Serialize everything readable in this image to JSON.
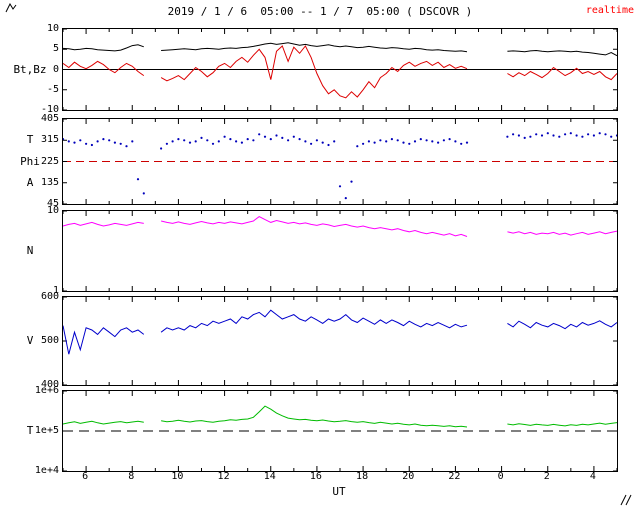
{
  "header": {
    "title": "2019 / 1 / 6  05:00 -- 1 / 7  05:00 ( DSCOVR )",
    "realtime_label": "realtime",
    "realtime_color": "#ff0000"
  },
  "icons": {
    "top_left_mark": "diagonal-hatch",
    "bottom_right_mark": "diagonal-hatch"
  },
  "x_axis": {
    "label": "UT",
    "t_start": 5,
    "t_end": 29,
    "t_step": 0.25,
    "tick_values": [
      6,
      8,
      10,
      12,
      14,
      16,
      18,
      20,
      22,
      24,
      26,
      28
    ],
    "tick_labels": [
      "6",
      "8",
      "10",
      "12",
      "14",
      "16",
      "18",
      "20",
      "22",
      "0",
      "2",
      "4"
    ]
  },
  "chart_data": [
    {
      "name": "bt_bz",
      "type": "line",
      "yscale": "linear",
      "ylim": [
        -10,
        10
      ],
      "yticks": [
        10,
        5,
        0,
        -5,
        -10
      ],
      "ytick_labels": [
        "10",
        "5",
        "0",
        "-5",
        "-10"
      ],
      "left_labels": [
        "Bt,Bz"
      ],
      "hlines": [
        {
          "value": 0,
          "color": "#000000",
          "dash": ""
        }
      ],
      "series": [
        {
          "name": "Bt",
          "color": "#000000",
          "values": [
            5.2,
            5.1,
            4.9,
            5.0,
            5.2,
            5.1,
            4.9,
            4.8,
            4.7,
            4.6,
            4.8,
            5.3,
            5.9,
            6.1,
            5.6,
            null,
            null,
            4.7,
            4.8,
            4.9,
            5.0,
            5.1,
            5.0,
            4.9,
            5.1,
            5.2,
            5.1,
            5.0,
            5.2,
            5.3,
            5.2,
            5.4,
            5.5,
            5.7,
            6.0,
            6.3,
            6.5,
            6.2,
            6.4,
            6.6,
            6.3,
            6.0,
            6.2,
            5.9,
            5.7,
            5.9,
            6.1,
            5.8,
            5.6,
            5.8,
            5.6,
            5.4,
            5.5,
            5.7,
            5.5,
            5.3,
            5.2,
            5.4,
            5.3,
            5.1,
            5.0,
            5.2,
            5.1,
            4.9,
            4.8,
            4.9,
            4.7,
            4.6,
            4.5,
            4.6,
            4.4,
            null,
            null,
            null,
            null,
            null,
            null,
            4.5,
            4.6,
            4.5,
            4.4,
            4.6,
            4.7,
            4.5,
            4.4,
            4.5,
            4.6,
            4.5,
            4.4,
            4.5,
            4.3,
            4.2,
            4.0,
            3.8,
            3.6,
            4.2,
            3.4
          ]
        },
        {
          "name": "Bz",
          "color": "#dd0000",
          "values": [
            1.5,
            0.5,
            1.8,
            0.8,
            0.2,
            1.0,
            2.0,
            1.2,
            0.0,
            -0.8,
            0.5,
            1.5,
            0.8,
            -0.5,
            -1.5,
            null,
            null,
            -2.0,
            -2.8,
            -2.2,
            -1.5,
            -2.5,
            -1.0,
            0.5,
            -0.5,
            -1.8,
            -0.8,
            0.8,
            1.5,
            0.5,
            2.0,
            3.0,
            1.8,
            3.5,
            5.0,
            3.0,
            -2.5,
            4.5,
            5.8,
            2.0,
            5.5,
            4.0,
            5.8,
            3.0,
            -1.0,
            -4.0,
            -6.0,
            -5.0,
            -6.5,
            -7.0,
            -5.5,
            -6.8,
            -5.0,
            -3.0,
            -4.5,
            -2.0,
            -1.0,
            0.5,
            -0.5,
            1.0,
            1.8,
            0.8,
            1.5,
            2.0,
            1.0,
            1.8,
            0.5,
            1.2,
            0.3,
            0.8,
            0.2,
            null,
            null,
            null,
            null,
            null,
            null,
            -1.0,
            -1.8,
            -0.8,
            -1.5,
            -0.5,
            -1.2,
            -2.0,
            -1.0,
            0.5,
            -0.5,
            -1.5,
            -0.8,
            0.3,
            -1.0,
            -0.5,
            -1.2,
            -0.5,
            -1.8,
            -2.5,
            -1.0
          ]
        }
      ]
    },
    {
      "name": "phi",
      "type": "scatter",
      "yscale": "linear",
      "ylim": [
        45,
        405
      ],
      "yticks": [
        405,
        315,
        225,
        135,
        45
      ],
      "ytick_labels": [
        "405",
        "315",
        "225",
        "135",
        "45"
      ],
      "left_labels": [
        "T",
        "Phi",
        "A"
      ],
      "hlines": [
        {
          "value": 225,
          "color": "#cc0000",
          "dash": "8 5"
        }
      ],
      "series": [
        {
          "name": "Phi",
          "color": "#0000bb",
          "values": [
            320,
            310,
            305,
            315,
            300,
            295,
            310,
            320,
            315,
            305,
            300,
            290,
            310,
            150,
            90,
            null,
            null,
            280,
            300,
            310,
            320,
            315,
            305,
            310,
            325,
            315,
            300,
            310,
            330,
            320,
            310,
            305,
            320,
            315,
            340,
            330,
            320,
            335,
            325,
            315,
            330,
            320,
            310,
            300,
            315,
            305,
            295,
            310,
            120,
            70,
            140,
            290,
            300,
            310,
            305,
            315,
            310,
            320,
            315,
            305,
            300,
            310,
            320,
            315,
            310,
            305,
            315,
            320,
            310,
            300,
            305,
            null,
            null,
            null,
            null,
            null,
            null,
            330,
            340,
            335,
            325,
            330,
            340,
            335,
            345,
            335,
            330,
            340,
            345,
            335,
            330,
            340,
            335,
            345,
            340,
            330,
            335
          ]
        }
      ]
    },
    {
      "name": "n",
      "type": "line",
      "yscale": "log",
      "ylim": [
        1,
        10
      ],
      "yticks": [
        10,
        1
      ],
      "ytick_labels": [
        "10",
        "1"
      ],
      "left_labels": [
        "N"
      ],
      "hlines": [],
      "series": [
        {
          "name": "N",
          "color": "#ff00ff",
          "values": [
            6.5,
            6.8,
            7.0,
            6.6,
            6.9,
            7.2,
            6.8,
            6.5,
            6.7,
            7.0,
            6.8,
            6.6,
            6.9,
            7.2,
            7.0,
            null,
            null,
            7.5,
            7.2,
            7.0,
            7.3,
            7.0,
            6.8,
            7.1,
            7.4,
            7.1,
            6.9,
            7.2,
            7.0,
            7.3,
            7.1,
            6.9,
            7.2,
            7.5,
            8.5,
            7.8,
            7.2,
            7.6,
            7.3,
            7.0,
            7.2,
            6.9,
            7.1,
            6.8,
            6.6,
            6.9,
            6.7,
            6.4,
            6.6,
            6.8,
            6.5,
            6.3,
            6.5,
            6.2,
            6.0,
            6.2,
            6.0,
            5.8,
            6.0,
            5.7,
            5.5,
            5.7,
            5.4,
            5.2,
            5.4,
            5.2,
            5.0,
            5.2,
            4.9,
            5.1,
            4.8,
            null,
            null,
            null,
            null,
            null,
            null,
            5.5,
            5.3,
            5.5,
            5.2,
            5.4,
            5.1,
            5.3,
            5.2,
            5.4,
            5.1,
            5.3,
            5.0,
            5.2,
            5.4,
            5.1,
            5.3,
            5.5,
            5.2,
            5.4,
            5.6
          ]
        }
      ]
    },
    {
      "name": "v",
      "type": "line",
      "yscale": "linear",
      "ylim": [
        400,
        600
      ],
      "yticks": [
        600,
        500,
        400
      ],
      "ytick_labels": [
        "600",
        "500",
        "400"
      ],
      "left_labels": [
        "V"
      ],
      "hlines": [],
      "series": [
        {
          "name": "V",
          "color": "#0000cc",
          "values": [
            535,
            470,
            520,
            480,
            530,
            525,
            515,
            530,
            520,
            510,
            525,
            530,
            520,
            525,
            515,
            null,
            null,
            520,
            530,
            525,
            530,
            525,
            535,
            530,
            540,
            535,
            545,
            540,
            545,
            550,
            540,
            555,
            550,
            560,
            565,
            555,
            570,
            560,
            550,
            555,
            560,
            550,
            545,
            555,
            548,
            540,
            550,
            545,
            550,
            560,
            548,
            542,
            552,
            545,
            538,
            548,
            540,
            548,
            542,
            535,
            545,
            538,
            532,
            540,
            535,
            542,
            536,
            530,
            538,
            532,
            536,
            null,
            null,
            null,
            null,
            null,
            null,
            540,
            532,
            545,
            538,
            530,
            542,
            536,
            532,
            540,
            535,
            528,
            538,
            532,
            542,
            536,
            540,
            546,
            538,
            532,
            542
          ]
        }
      ]
    },
    {
      "name": "t",
      "type": "line",
      "yscale": "log",
      "ylim": [
        10000,
        1000000
      ],
      "yticks": [
        1000000,
        100000,
        10000
      ],
      "ytick_labels": [
        "1e+6",
        "1e+5",
        "1e+4"
      ],
      "left_labels": [
        "T"
      ],
      "hlines": [
        {
          "value": 100000,
          "color": "#000000",
          "dash": "10 6"
        }
      ],
      "series": [
        {
          "name": "T",
          "color": "#00bb00",
          "values": [
            150000,
            160000,
            170000,
            155000,
            165000,
            175000,
            160000,
            150000,
            158000,
            165000,
            172000,
            160000,
            168000,
            175000,
            165000,
            null,
            null,
            180000,
            170000,
            175000,
            185000,
            175000,
            168000,
            178000,
            182000,
            172000,
            165000,
            175000,
            180000,
            190000,
            185000,
            195000,
            200000,
            220000,
            300000,
            420000,
            350000,
            280000,
            240000,
            210000,
            200000,
            190000,
            195000,
            185000,
            180000,
            188000,
            178000,
            170000,
            175000,
            182000,
            172000,
            165000,
            172000,
            162000,
            155000,
            165000,
            158000,
            150000,
            156000,
            148000,
            142000,
            150000,
            140000,
            135000,
            140000,
            135000,
            130000,
            136000,
            128000,
            132000,
            126000,
            null,
            null,
            null,
            null,
            null,
            null,
            150000,
            142000,
            152000,
            145000,
            138000,
            148000,
            142000,
            138000,
            146000,
            140000,
            134000,
            144000,
            138000,
            148000,
            142000,
            150000,
            158000,
            148000,
            155000,
            162000
          ]
        }
      ]
    }
  ]
}
